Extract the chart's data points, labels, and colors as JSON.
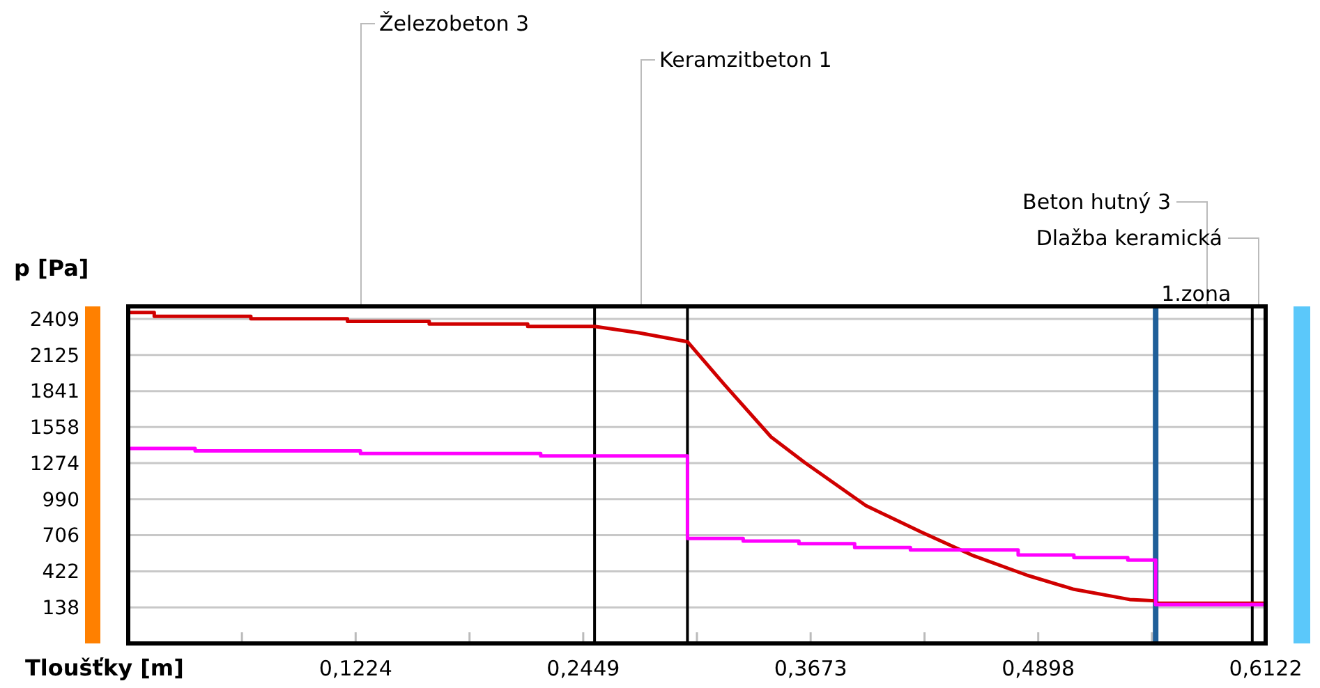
{
  "chart_data": {
    "type": "line",
    "xlabel": "Tloušťky [m]",
    "ylabel": "p [Pa]",
    "xlim": [
      0,
      0.6122
    ],
    "ylim": [
      -146,
      2508
    ],
    "xticks": [
      {
        "value": 0.0612,
        "label": null
      },
      {
        "value": 0.1224,
        "label": "0,1224"
      },
      {
        "value": 0.1837,
        "label": null
      },
      {
        "value": 0.2449,
        "label": "0,2449"
      },
      {
        "value": 0.3061,
        "label": null
      },
      {
        "value": 0.3673,
        "label": "0,3673"
      },
      {
        "value": 0.4286,
        "label": null
      },
      {
        "value": 0.4898,
        "label": "0,4898"
      },
      {
        "value": 0.551,
        "label": null
      },
      {
        "value": 0.6122,
        "label": "0,6122"
      }
    ],
    "yticks": [
      138,
      422,
      706,
      990,
      1274,
      1558,
      1841,
      2125,
      2409
    ],
    "grid": "y",
    "marker": "none",
    "line_style": "solid",
    "series": [
      {
        "color": "#d00000",
        "x": [
          0,
          0.014,
          0.014,
          0.066,
          0.066,
          0.118,
          0.118,
          0.162,
          0.162,
          0.215,
          0.215,
          0.251,
          0.275,
          0.301,
          0.321,
          0.346,
          0.364,
          0.397,
          0.427,
          0.454,
          0.484,
          0.509,
          0.539,
          0.553,
          0.553,
          0.6122
        ],
        "values": [
          2460,
          2460,
          2430,
          2430,
          2410,
          2410,
          2390,
          2390,
          2370,
          2370,
          2350,
          2350,
          2300,
          2230,
          1890,
          1480,
          1280,
          940,
          730,
          550,
          390,
          280,
          200,
          190,
          170,
          170
        ]
      },
      {
        "color": "#ff00ff",
        "x": [
          0,
          0.036,
          0.036,
          0.125,
          0.125,
          0.222,
          0.222,
          0.301,
          0.301,
          0.331,
          0.331,
          0.361,
          0.361,
          0.391,
          0.391,
          0.421,
          0.421,
          0.479,
          0.479,
          0.509,
          0.509,
          0.538,
          0.538,
          0.553,
          0.553,
          0.6122
        ],
        "values": [
          1390,
          1390,
          1370,
          1370,
          1350,
          1350,
          1330,
          1330,
          680,
          680,
          660,
          660,
          640,
          640,
          610,
          610,
          590,
          590,
          550,
          550,
          530,
          530,
          510,
          510,
          160,
          160
        ]
      }
    ],
    "ref_lines": [
      {
        "axis": "x",
        "value": 0.251,
        "color": "#000000"
      },
      {
        "axis": "x",
        "value": 0.301,
        "color": "#000000"
      },
      {
        "axis": "x",
        "value": 0.553,
        "color": "#1f5f99",
        "label": "1.zona"
      },
      {
        "axis": "x",
        "value": 0.605,
        "color": "#000000"
      }
    ],
    "annotations": [
      "Železobeton 3",
      "Keramzitbeton 1",
      "Beton hutný 3",
      "Dlažba keramická"
    ]
  }
}
